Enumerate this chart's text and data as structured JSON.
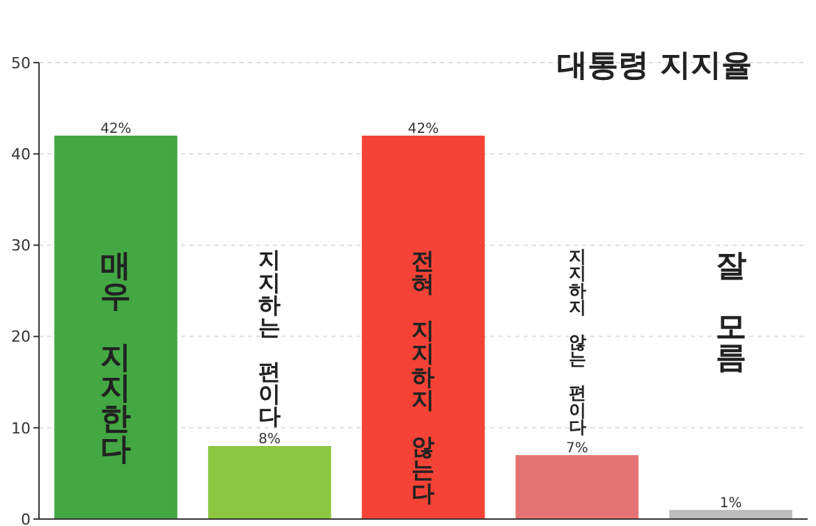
{
  "chart_data": {
    "type": "bar",
    "title": "대통령 지지율",
    "categories": [
      "매우 지지한다",
      "지지하는 편이다",
      "전혀 지지하지 않는다",
      "지지하지 않는 편이다",
      "잘 모름"
    ],
    "values": [
      42,
      8,
      42,
      7,
      1
    ],
    "colors": [
      "#43a843",
      "#8dc641",
      "#f44336",
      "#e57373",
      "#bdbdbd"
    ],
    "value_labels": [
      "42%",
      "8%",
      "42%",
      "7%",
      "1%"
    ],
    "ylim": [
      0,
      50
    ],
    "yticks": [
      0,
      10,
      20,
      30,
      40,
      50
    ],
    "grid": "y"
  }
}
